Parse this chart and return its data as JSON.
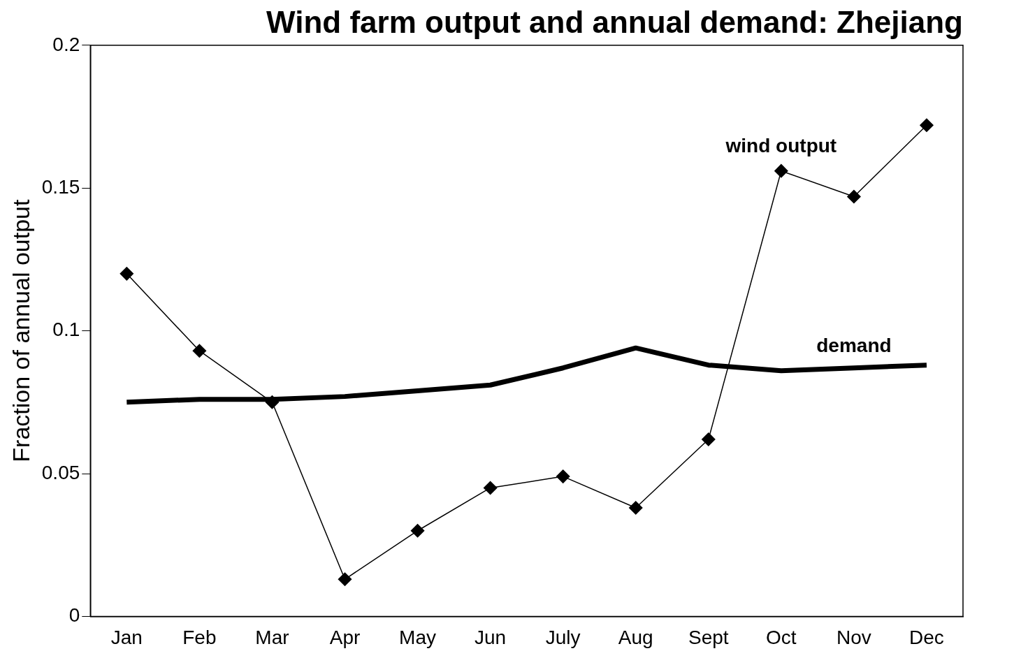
{
  "chart_data": {
    "type": "line",
    "title": "Wind farm output and annual demand: Zhejiang",
    "ylabel": "Fraction of annual output",
    "categories": [
      "Jan",
      "Feb",
      "Mar",
      "Apr",
      "May",
      "Jun",
      "July",
      "Aug",
      "Sept",
      "Oct",
      "Nov",
      "Dec"
    ],
    "series": [
      {
        "name": "wind output",
        "color": "#000000",
        "values": [
          0.12,
          0.093,
          0.075,
          0.013,
          0.03,
          0.045,
          0.049,
          0.038,
          0.062,
          0.156,
          0.147,
          0.172
        ]
      },
      {
        "name": "demand",
        "color": "#000000",
        "marker": "none",
        "values": [
          0.075,
          0.076,
          0.076,
          0.077,
          0.079,
          0.081,
          0.087,
          0.094,
          0.088,
          0.086,
          0.087,
          0.088
        ]
      }
    ],
    "ylim": [
      0,
      0.2
    ],
    "yticks": [
      0,
      0.05,
      0.1,
      0.15,
      0.2
    ],
    "grid": false,
    "legend": false,
    "marker": "diamond",
    "line_style": "solid"
  }
}
